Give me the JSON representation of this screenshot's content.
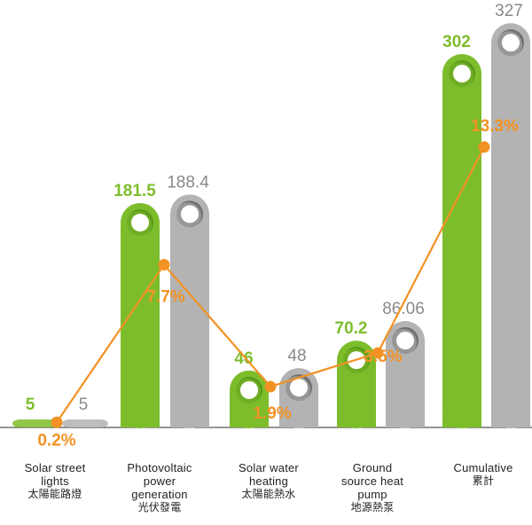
{
  "chart_data": {
    "type": "bar",
    "categories": [
      {
        "en": "Solar street lights",
        "zh": "太陽能路燈",
        "en_lines": [
          "Solar street",
          "lights"
        ]
      },
      {
        "en": "Photovoltaic power generation",
        "zh": "光伏發電",
        "en_lines": [
          "Photovoltaic",
          "power",
          "generation"
        ]
      },
      {
        "en": "Solar water heating",
        "zh": "太陽能熱水",
        "en_lines": [
          "Solar water",
          "heating"
        ]
      },
      {
        "en": "Ground source heat pump",
        "zh": "地源熱泵",
        "en_lines": [
          "Ground",
          "source heat",
          "pump"
        ]
      },
      {
        "en": "Cumulative",
        "zh": "累計",
        "en_lines": [
          "Cumulative"
        ]
      }
    ],
    "series": [
      {
        "values": [
          5,
          181.5,
          46,
          70.2,
          302
        ],
        "labels": [
          "5",
          "181.5",
          "46",
          "70.2",
          "302"
        ],
        "color": "#7dbd2c"
      },
      {
        "values": [
          5,
          188.4,
          48,
          86.06,
          327
        ],
        "labels": [
          "5",
          "188.4",
          "48",
          "86.06",
          "327"
        ],
        "color": "#b3b3b3"
      },
      {
        "type": "line",
        "values": [
          0.2,
          7.7,
          1.9,
          3.5,
          13.3
        ],
        "labels": [
          "0.2%",
          "7.7%",
          "1.9%",
          "3.5%",
          "13.3%"
        ],
        "color": "#f39224"
      }
    ],
    "colors": {
      "green": "#7dbd2c",
      "gray": "#b3b3b3",
      "orange": "#f39224",
      "baseline": "#555555"
    },
    "grid": false,
    "legend": "none"
  }
}
